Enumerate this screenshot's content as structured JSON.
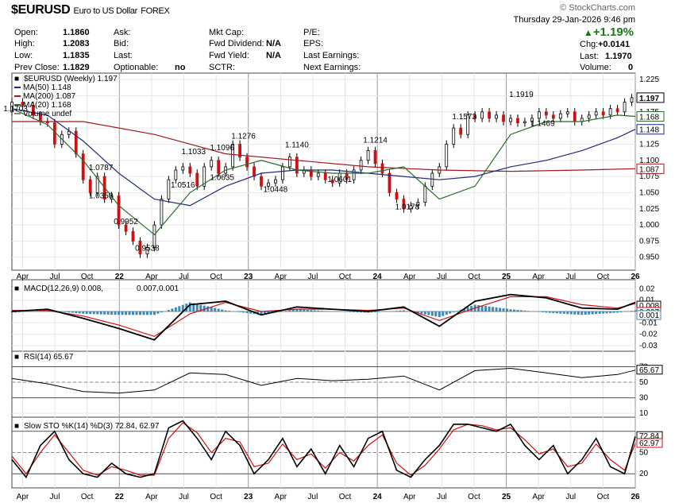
{
  "header": {
    "symbol": "$EURUSD",
    "name": "Euro to US Dollar",
    "exchange": "FOREX",
    "watermark": "© StockCharts.com",
    "date_line": "Thursday  29-Jan-2026  9:46 pm",
    "change_pct": "+1.19%",
    "up_color": "#1a7a1a"
  },
  "quote": {
    "open_label": "Open:",
    "open": "1.1860",
    "high_label": "High:",
    "high": "1.2083",
    "low_label": "Low:",
    "low": "1.1835",
    "prev_label": "Prev Close:",
    "prev": "1.1829",
    "ask_label": "Ask:",
    "bid_label": "Bid:",
    "last_label": "Last:",
    "optionable_label": "Optionable:",
    "optionable": "no",
    "mktcap_label": "Mkt Cap:",
    "fwd_div_label": "Fwd Dividend:",
    "fwd_div": "N/A",
    "fwd_yield_label": "Fwd Yield:",
    "fwd_yield": "N/A",
    "sctr_label": "SCTR:",
    "pe_label": "P/E:",
    "eps_label": "EPS:",
    "last_earn_label": "Last Earnings:",
    "next_earn_label": "Next Earnings:",
    "chg_label": "Chg:",
    "chg": "+0.0141",
    "last2_label": "Last:",
    "last2": "1.1970",
    "volume_label": "Volume:",
    "volume": "0"
  },
  "chart_data": [
    {
      "type": "line",
      "title": "$EURUSD (Weekly) 1.197",
      "ylim": [
        0.93,
        1.235
      ],
      "yticks": [
        "1.225",
        "1.200",
        "1.175",
        "1.150",
        "1.125",
        "1.100",
        "1.075",
        "1.050",
        "1.025",
        "1.000",
        "0.975",
        "0.950"
      ],
      "x_labels": [
        "Apr",
        "Jul",
        "Oct",
        "22",
        "Apr",
        "Jul",
        "Oct",
        "23",
        "Apr",
        "Jul",
        "Oct",
        "24",
        "Apr",
        "Jul",
        "Oct",
        "25",
        "Apr",
        "Jul",
        "Oct",
        "26"
      ],
      "legend": [
        "MA(50) 1.148",
        "MA(200) 1.087",
        "MA(20) 1.168",
        "Volume undef"
      ],
      "series": [
        {
          "name": "$EURUSD",
          "color": "#000000",
          "x": [
            0,
            6,
            12,
            16,
            20,
            24,
            28,
            32,
            36,
            40,
            44,
            48,
            52,
            56,
            60,
            64,
            68,
            72,
            76,
            80,
            84,
            88,
            92,
            96,
            100,
            104,
            108,
            112,
            116,
            120,
            124,
            128,
            132,
            136,
            140,
            144,
            148,
            152,
            156,
            160,
            164,
            168,
            172,
            176,
            180,
            184,
            188,
            192,
            196,
            200,
            204,
            208,
            212,
            216,
            220,
            224,
            228,
            232,
            236,
            240,
            244,
            248,
            252,
            256,
            260,
            264,
            268,
            272,
            276,
            280,
            284,
            288,
            292,
            296,
            300,
            304,
            308,
            312,
            316,
            320,
            324,
            328,
            332,
            336,
            340,
            344,
            348,
            350
          ],
          "values": [
            1.175,
            1.19,
            1.185,
            1.17,
            1.16,
            1.158,
            1.125,
            1.14,
            1.145,
            1.11,
            1.07,
            1.05,
            1.075,
            1.04,
            1.045,
            1.0,
            0.99,
            0.975,
            0.955,
            0.965,
            1.0,
            1.04,
            1.07,
            1.085,
            1.09,
            1.08,
            1.06,
            1.09,
            1.1,
            1.08,
            1.09,
            1.125,
            1.105,
            1.09,
            1.075,
            1.06,
            1.065,
            1.07,
            1.09,
            1.105,
            1.08,
            1.085,
            1.075,
            1.08,
            1.07,
            1.065,
            1.08,
            1.07,
            1.085,
            1.1,
            1.115,
            1.095,
            1.08,
            1.05,
            1.04,
            1.025,
            1.03,
            1.035,
            1.06,
            1.08,
            1.09,
            1.125,
            1.15,
            1.14,
            1.17,
            1.165,
            1.175,
            1.165,
            1.17,
            1.16,
            1.165,
            1.158,
            1.16,
            1.165,
            1.175,
            1.17,
            1.165,
            1.172,
            1.175,
            1.16,
            1.165,
            1.17,
            1.175,
            1.17,
            1.18,
            1.175,
            1.19,
            1.197
          ]
        },
        {
          "name": "MA(50)",
          "color": "#1f2a7a",
          "x": [
            0,
            20,
            40,
            60,
            80,
            100,
            120,
            140,
            160,
            180,
            200,
            220,
            240,
            260,
            280,
            300,
            320,
            340,
            350
          ],
          "values": [
            1.18,
            1.17,
            1.13,
            1.08,
            1.04,
            1.03,
            1.06,
            1.08,
            1.085,
            1.085,
            1.08,
            1.075,
            1.07,
            1.075,
            1.09,
            1.1,
            1.115,
            1.135,
            1.148
          ]
        },
        {
          "name": "MA(200)",
          "color": "#a01820",
          "x": [
            0,
            40,
            80,
            120,
            160,
            200,
            240,
            280,
            320,
            350
          ],
          "values": [
            1.16,
            1.16,
            1.14,
            1.11,
            1.1,
            1.09,
            1.085,
            1.083,
            1.085,
            1.087
          ]
        },
        {
          "name": "MA(20)",
          "color": "#2a6b2a",
          "x": [
            0,
            20,
            40,
            60,
            80,
            100,
            120,
            140,
            160,
            180,
            200,
            220,
            240,
            260,
            280,
            300,
            320,
            340,
            350
          ],
          "values": [
            1.18,
            1.155,
            1.1,
            1.03,
            0.985,
            1.05,
            1.085,
            1.1,
            1.085,
            1.08,
            1.08,
            1.09,
            1.04,
            1.06,
            1.14,
            1.16,
            1.16,
            1.17,
            1.168
          ]
        }
      ],
      "annotations": [
        {
          "text": "1.1703",
          "x": 2,
          "y": 1.17
        },
        {
          "text": "1.0787",
          "x": 50,
          "y": 1.0787
        },
        {
          "text": "1.0350",
          "x": 50,
          "y": 1.035
        },
        {
          "text": "0.9952",
          "x": 64,
          "y": 0.9952
        },
        {
          "text": "0.9538",
          "x": 76,
          "y": 0.9538
        },
        {
          "text": "1.0516",
          "x": 96,
          "y": 1.0516
        },
        {
          "text": "1.1033",
          "x": 102,
          "y": 1.1033
        },
        {
          "text": "1.0635",
          "x": 118,
          "y": 1.0635
        },
        {
          "text": "1.1096",
          "x": 118,
          "y": 1.1096
        },
        {
          "text": "1.1276",
          "x": 130,
          "y": 1.1276
        },
        {
          "text": "1.0448",
          "x": 148,
          "y": 1.0448
        },
        {
          "text": "1.1140",
          "x": 160,
          "y": 1.114
        },
        {
          "text": "1.0601",
          "x": 184,
          "y": 1.0601
        },
        {
          "text": "1.1214",
          "x": 204,
          "y": 1.1214
        },
        {
          "text": "1.0178",
          "x": 222,
          "y": 1.0178
        },
        {
          "text": "1.1573",
          "x": 254,
          "y": 1.1573
        },
        {
          "text": "1.1919",
          "x": 286,
          "y": 1.1919
        },
        {
          "text": "1.1469",
          "x": 298,
          "y": 1.1469
        }
      ],
      "right_labels": [
        {
          "text": "1.197",
          "y": 1.197,
          "color": "#000000"
        },
        {
          "text": "1.168",
          "y": 1.168,
          "color": "#2a6b2a"
        },
        {
          "text": "1.148",
          "y": 1.148,
          "color": "#1f2a7a"
        },
        {
          "text": "1.087",
          "y": 1.087,
          "color": "#a01820"
        }
      ]
    },
    {
      "type": "line",
      "title": "MACD(12,26,9) 0.008, 0.007, 0.001",
      "legend": [
        "MACD(12,26,9) 0.008,",
        "0.007,",
        "0.001"
      ],
      "ylim": [
        -0.035,
        0.028
      ],
      "yticks": [
        "0.02",
        "0.01",
        "-0.01",
        "-0.02",
        "-0.03"
      ],
      "right_labels": [
        "0.008",
        "0.007",
        "0.001"
      ],
      "series": [
        {
          "name": "MACD",
          "color": "#000000",
          "x": [
            0,
            20,
            40,
            60,
            80,
            100,
            120,
            140,
            160,
            180,
            200,
            220,
            240,
            260,
            280,
            300,
            320,
            340,
            350
          ],
          "values": [
            0.0,
            0.002,
            -0.006,
            -0.015,
            -0.025,
            0.006,
            0.009,
            -0.003,
            0.004,
            0.002,
            0.0,
            0.004,
            -0.013,
            0.009,
            0.015,
            0.012,
            0.003,
            0.002,
            0.008
          ]
        },
        {
          "name": "Signal",
          "color": "#d01010",
          "x": [
            0,
            20,
            40,
            60,
            80,
            100,
            120,
            140,
            160,
            180,
            200,
            220,
            240,
            260,
            280,
            300,
            320,
            340,
            350
          ],
          "values": [
            0.001,
            0.001,
            -0.004,
            -0.012,
            -0.022,
            -0.002,
            0.008,
            0.0,
            0.002,
            0.002,
            0.001,
            0.003,
            -0.008,
            0.003,
            0.013,
            0.013,
            0.006,
            0.003,
            0.007
          ]
        },
        {
          "name": "Histogram",
          "color": "#3a8ab8",
          "x": [
            0,
            20,
            40,
            60,
            80,
            100,
            120,
            140,
            160,
            180,
            200,
            220,
            240,
            260,
            280,
            300,
            320,
            340,
            350
          ],
          "values": [
            -0.001,
            0.001,
            -0.002,
            -0.003,
            -0.003,
            0.008,
            0.001,
            -0.003,
            0.002,
            0.0,
            -0.001,
            0.001,
            -0.005,
            0.006,
            0.002,
            -0.001,
            -0.003,
            -0.001,
            0.001
          ]
        }
      ]
    },
    {
      "type": "line",
      "title": "RSI(14) 65.67",
      "ylim": [
        5,
        90
      ],
      "yticks": [
        "70",
        "50",
        "30",
        "10"
      ],
      "right_labels": [
        "65.67"
      ],
      "series": [
        {
          "name": "RSI(14)",
          "color": "#000000",
          "x": [
            0,
            20,
            40,
            60,
            80,
            100,
            120,
            140,
            160,
            180,
            200,
            220,
            240,
            260,
            280,
            300,
            320,
            340,
            350
          ],
          "values": [
            55,
            48,
            38,
            36,
            40,
            62,
            60,
            46,
            55,
            52,
            54,
            58,
            40,
            65,
            68,
            62,
            56,
            60,
            65.67
          ]
        }
      ]
    },
    {
      "type": "line",
      "title": "Slow STO %K(14) %D(3) 72.84, 62.97",
      "ylim": [
        0,
        100
      ],
      "yticks": [
        "50",
        "20"
      ],
      "right_labels": [
        "72.84",
        "62.97"
      ],
      "series": [
        {
          "name": "%K",
          "color": "#000000",
          "x": [
            0,
            8,
            16,
            24,
            32,
            40,
            48,
            56,
            64,
            72,
            80,
            88,
            96,
            104,
            112,
            120,
            128,
            136,
            144,
            152,
            160,
            168,
            176,
            184,
            192,
            200,
            208,
            216,
            224,
            232,
            240,
            248,
            256,
            264,
            272,
            280,
            288,
            296,
            304,
            312,
            320,
            328,
            336,
            344,
            350
          ],
          "values": [
            40,
            15,
            60,
            80,
            40,
            20,
            15,
            35,
            20,
            15,
            20,
            85,
            95,
            70,
            40,
            80,
            60,
            20,
            40,
            70,
            30,
            55,
            20,
            60,
            30,
            70,
            80,
            25,
            15,
            40,
            60,
            90,
            90,
            85,
            80,
            90,
            60,
            40,
            60,
            20,
            40,
            70,
            30,
            20,
            72.84
          ]
        },
        {
          "name": "%D",
          "color": "#d01010",
          "x": [
            0,
            8,
            16,
            24,
            32,
            40,
            48,
            56,
            64,
            72,
            80,
            88,
            96,
            104,
            112,
            120,
            128,
            136,
            144,
            152,
            160,
            168,
            176,
            184,
            192,
            200,
            208,
            216,
            224,
            232,
            240,
            248,
            256,
            264,
            272,
            280,
            288,
            296,
            304,
            312,
            320,
            328,
            336,
            344,
            350
          ],
          "values": [
            45,
            20,
            50,
            75,
            50,
            25,
            18,
            30,
            25,
            18,
            18,
            70,
            92,
            78,
            50,
            70,
            65,
            30,
            35,
            62,
            40,
            48,
            28,
            50,
            38,
            60,
            75,
            35,
            18,
            32,
            55,
            82,
            90,
            88,
            82,
            85,
            68,
            48,
            55,
            30,
            35,
            62,
            40,
            25,
            62.97
          ]
        }
      ]
    }
  ]
}
